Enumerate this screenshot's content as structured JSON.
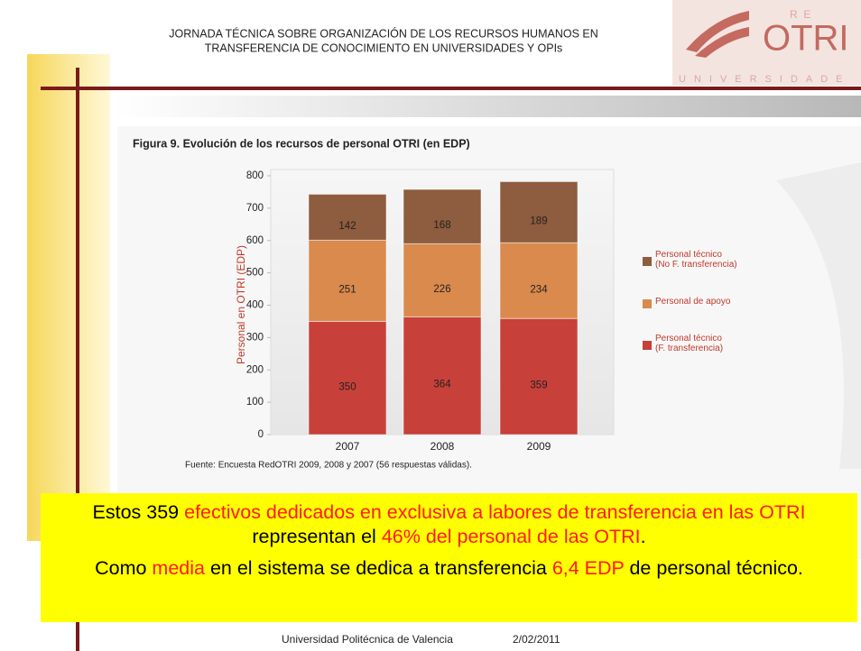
{
  "header": {
    "title_lines": [
      "JORNADA TÉCNICA SOBRE ORGANIZACIÓN DE LOS RECURSOS HUMANOS EN",
      "TRANSFERENCIA DE CONOCIMIENTO EN UNIVERSIDADES Y OPIs"
    ],
    "logo": "OTRI",
    "logo_top": "R  E",
    "logo_bottom": "UNIVERSIDADE"
  },
  "chart_data": {
    "type": "bar",
    "stacked": true,
    "title": "Figura 9. Evolución de los recursos de personal OTRI (en EDP)",
    "ylabel": "Personal en OTRI (EDP)",
    "categories": [
      "2007",
      "2008",
      "2009"
    ],
    "series": [
      {
        "name": "Personal técnico\n(F. transferencia)",
        "color": "#c8403a",
        "values": [
          350,
          364,
          359
        ]
      },
      {
        "name": "Personal de apoyo",
        "color": "#d98a4c",
        "values": [
          251,
          226,
          234
        ]
      },
      {
        "name": "Personal técnico\n(No F. transferencia)",
        "color": "#8e5c3e",
        "values": [
          142,
          168,
          189
        ]
      }
    ],
    "ylim": [
      0,
      800
    ],
    "yticks": [
      0,
      100,
      200,
      300,
      400,
      500,
      600,
      700,
      800
    ],
    "source": "Fuente: Encuesta RedOTRI 2009, 2008 y 2007 (56 respuestas válidas)."
  },
  "callout": {
    "paragraphs": [
      [
        {
          "text": "Estos 359 ",
          "highlight": false
        },
        {
          "text": "efectivos dedicados en exclusiva a labores de transferencia en las OTRI",
          "highlight": true
        },
        {
          "text": " representan el ",
          "highlight": false
        },
        {
          "text": "46% del personal de las OTRI",
          "highlight": true
        },
        {
          "text": ".",
          "highlight": false
        }
      ],
      [
        {
          "text": "Como ",
          "highlight": false
        },
        {
          "text": "media",
          "highlight": true
        },
        {
          "text": " en el sistema se dedica a transferencia ",
          "highlight": false
        },
        {
          "text": "6,4 EDP",
          "highlight": true
        },
        {
          "text": " de personal técnico.",
          "highlight": false
        }
      ]
    ]
  },
  "footer": {
    "institution": "Universidad Politécnica de Valencia",
    "date": "2/02/2011"
  }
}
